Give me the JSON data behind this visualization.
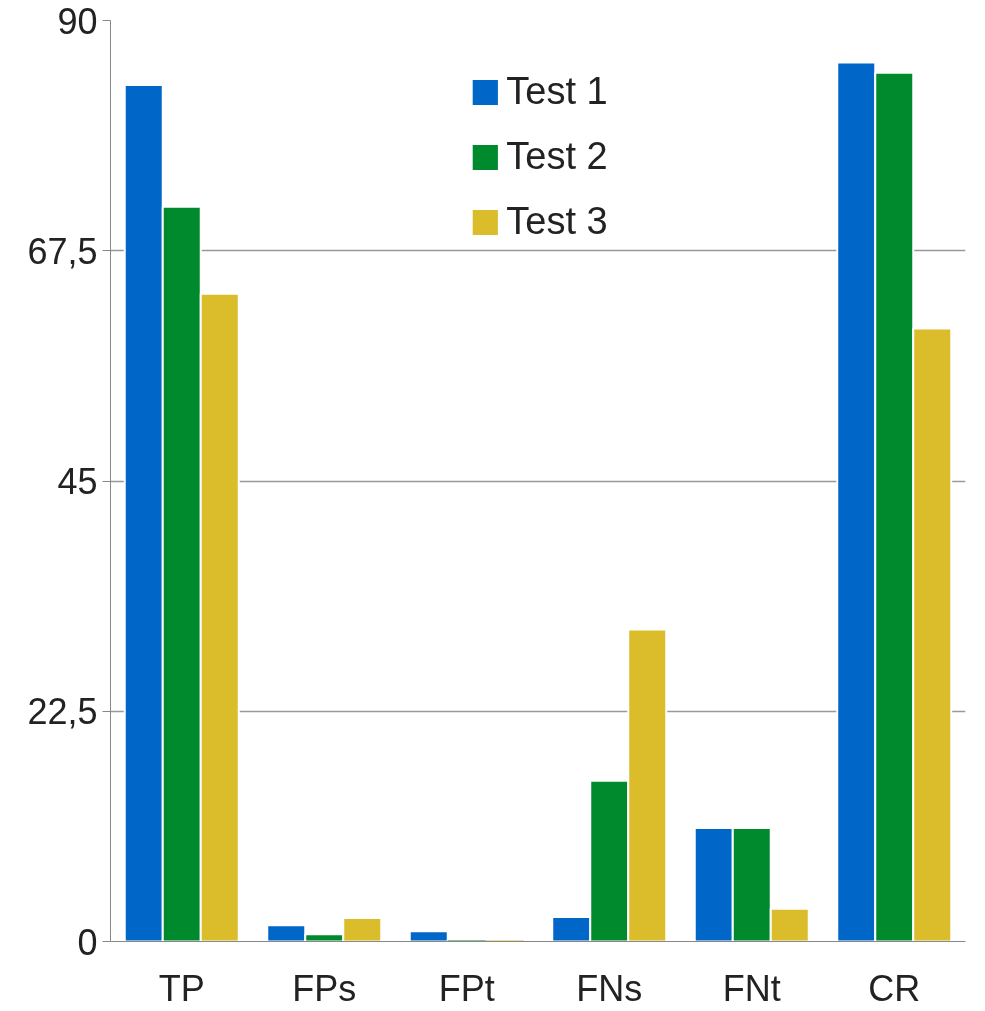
{
  "chart_data": {
    "type": "bar",
    "categories": [
      "TP",
      "FPs",
      "FPt",
      "FNs",
      "FNt",
      "CR"
    ],
    "series": [
      {
        "name": "Test 1",
        "color": "#0066c8",
        "values": [
          83.7,
          1.6,
          1.0,
          2.4,
          11.1,
          85.9
        ]
      },
      {
        "name": "Test 2",
        "color": "#008a2e",
        "values": [
          71.8,
          0.7,
          0,
          15.7,
          11.1,
          84.9
        ]
      },
      {
        "name": "Test 3",
        "color": "#dbbd2b",
        "values": [
          63.3,
          2.3,
          0,
          30.5,
          3.2,
          59.9
        ]
      }
    ],
    "ylim": [
      0,
      90
    ],
    "yticks": [
      0,
      {
        "value": 22.5,
        "label": "22,5"
      },
      45,
      {
        "value": 67.5,
        "label": "67,5"
      },
      90
    ],
    "grid": "y",
    "legend": "top"
  }
}
